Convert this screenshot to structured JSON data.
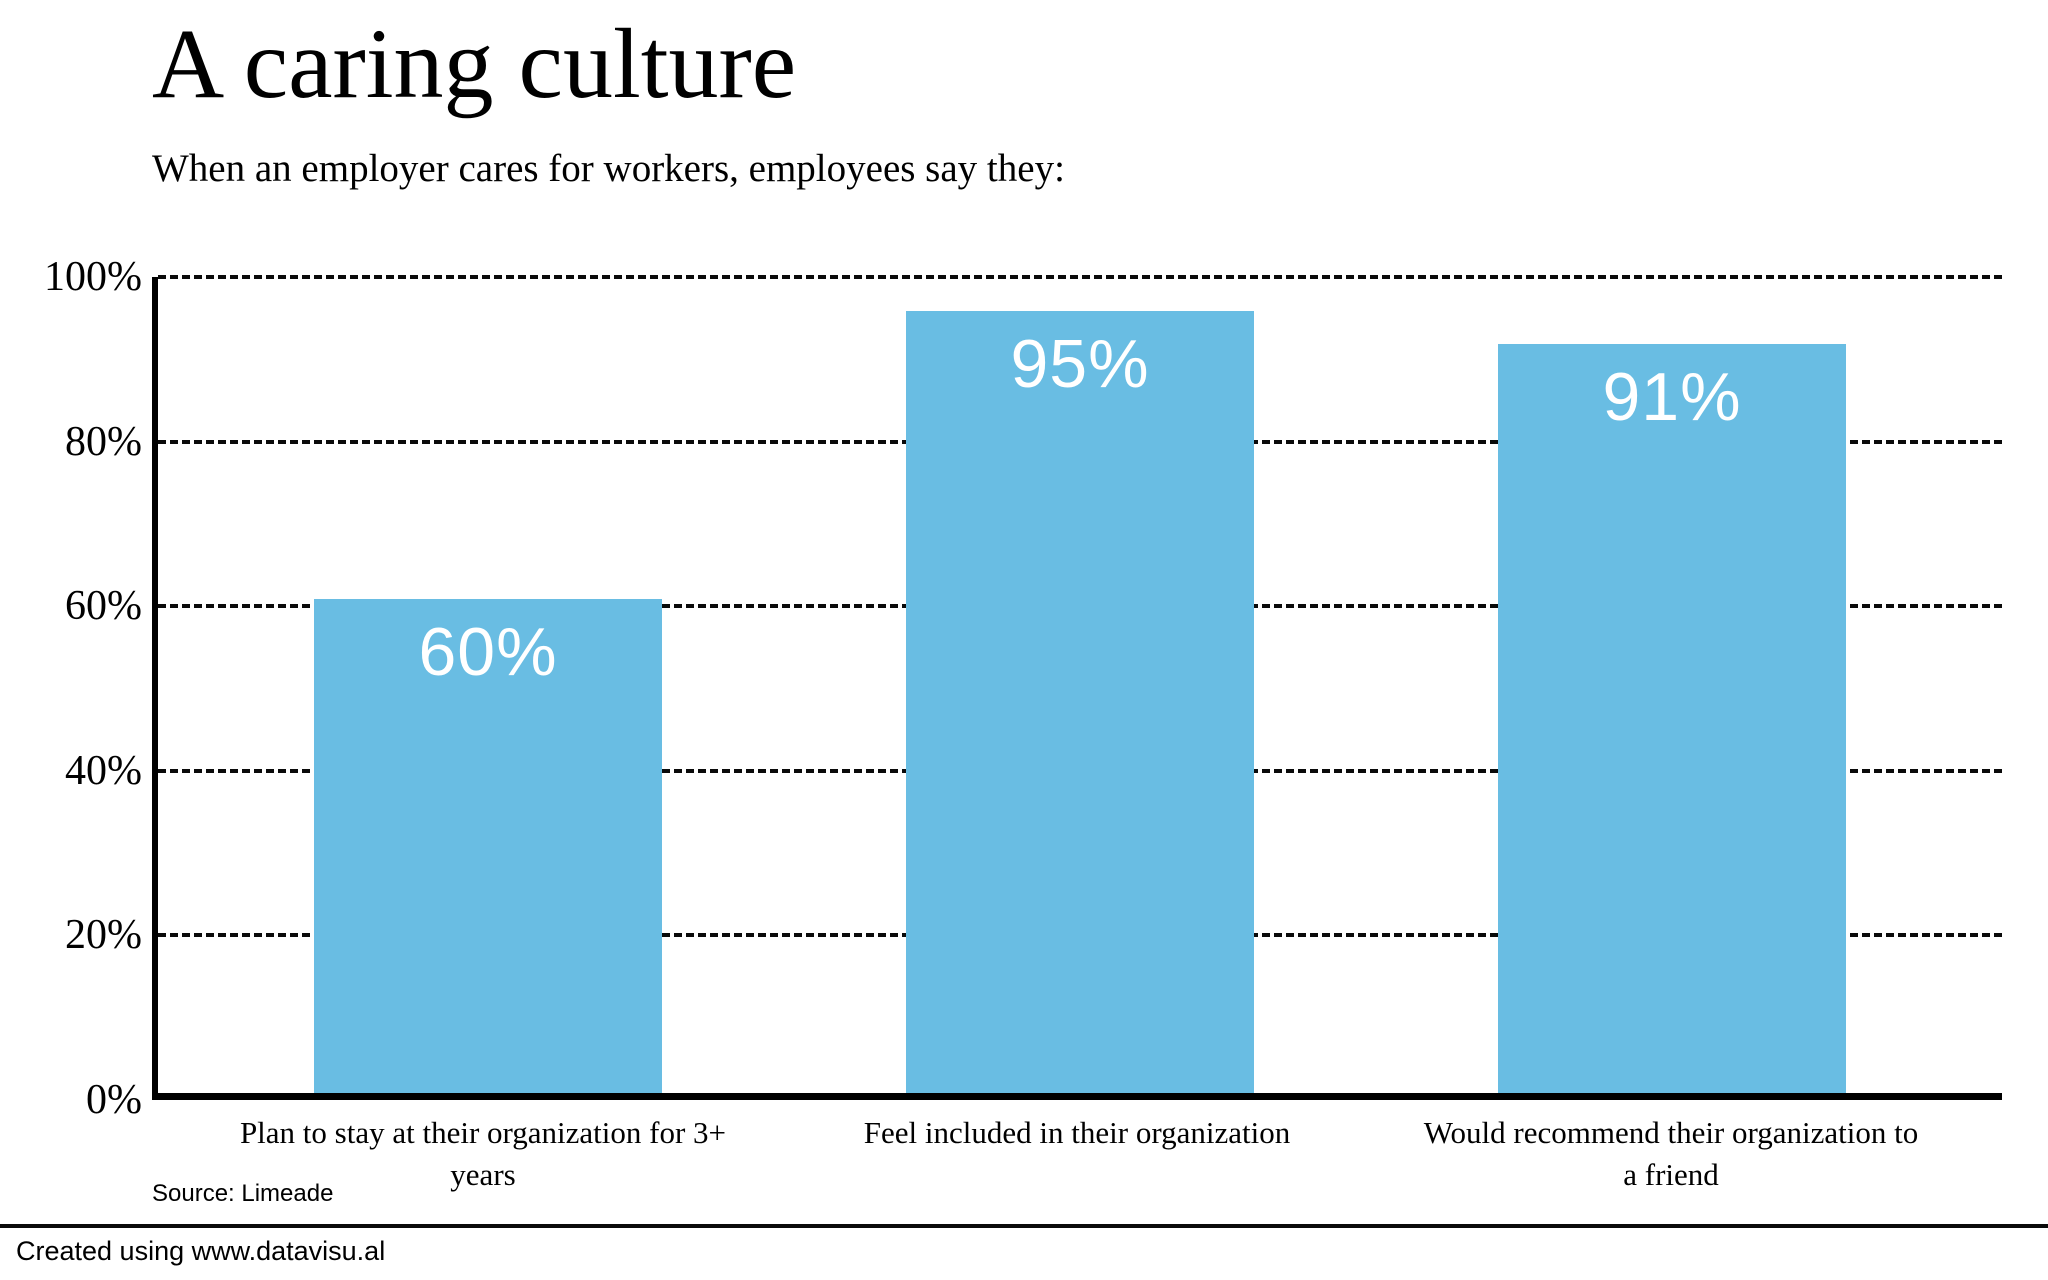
{
  "header": {
    "title": "A caring culture",
    "subtitle": "When an employer cares for workers, employees say they:"
  },
  "chart_data": {
    "type": "bar",
    "title": "A caring culture",
    "subtitle": "When an employer cares for workers, employees say they:",
    "categories": [
      "Plan to stay at their organization for 3+ years",
      "Feel included in their organization",
      "Would recommend their organization to a friend"
    ],
    "category_lines": [
      [
        "Plan to stay at their organization for 3+",
        "years"
      ],
      [
        "Feel included in their organization"
      ],
      [
        "Would recommend their organization to",
        "a friend"
      ]
    ],
    "values": [
      60,
      95,
      91
    ],
    "value_labels": [
      "60%",
      "95%",
      "91%"
    ],
    "xlabel": "",
    "ylabel": "",
    "ylim": [
      0,
      100
    ],
    "yticks": [
      0,
      20,
      40,
      60,
      80,
      100
    ],
    "ytick_labels": [
      "0%",
      "20%",
      "40%",
      "60%",
      "80%",
      "100%"
    ],
    "gridlines_at": [
      20,
      40,
      60,
      80,
      100
    ],
    "grid_style": "dashed-horizontal",
    "legend": "none",
    "bar_color": "#69BDE3",
    "value_label_color": "#FFFFFF",
    "axis_color": "#000000"
  },
  "source": {
    "label": "Source: Limeade"
  },
  "footer": {
    "credit": "Created using www.datavisu.al"
  }
}
